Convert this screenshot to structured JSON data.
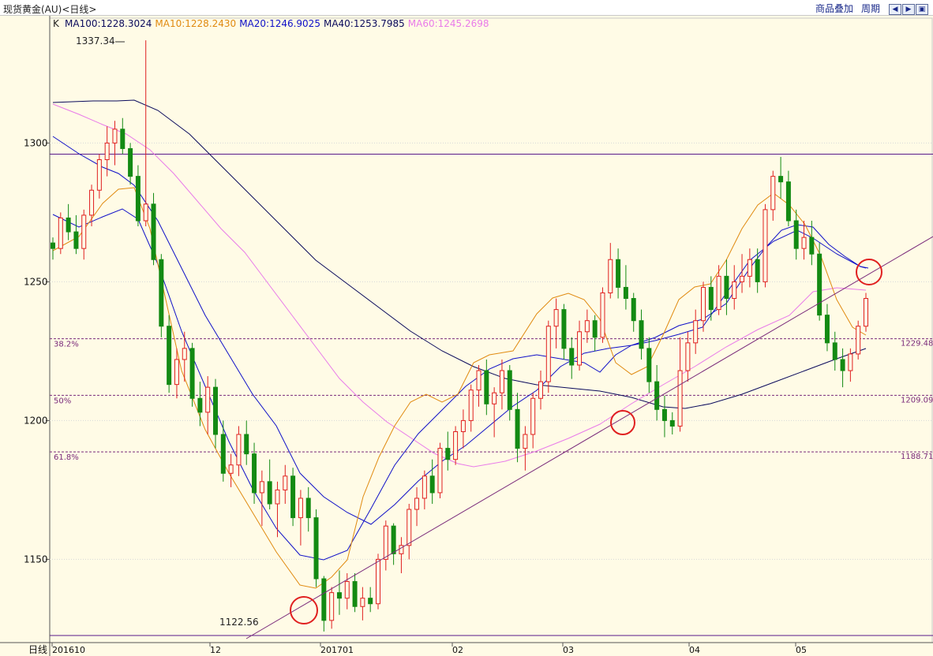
{
  "header": {
    "title": "现货黄金(AU)<日线>",
    "overlay_label": "商品叠加",
    "period_label": "周期",
    "nav_icons": [
      "arrow-left-icon",
      "arrow-right-icon",
      "restore-icon"
    ]
  },
  "legend": {
    "k_label": "K",
    "ma_items": [
      {
        "text": "MA100:1228.3024",
        "color": "#0a0a5c"
      },
      {
        "text": "MA10:1228.2430",
        "color": "#e08a10"
      },
      {
        "text": "MA20:1246.9025",
        "color": "#1010c8"
      },
      {
        "text": "MA40:1253.7985",
        "color": "#0a0a5c"
      },
      {
        "text": "MA60:1245.2698",
        "color": "#e97be9"
      }
    ]
  },
  "chart_data": {
    "type": "candlestick",
    "ylim": [
      1120,
      1345
    ],
    "ytick_labels": [
      "1150",
      "1200",
      "1250",
      "1300"
    ],
    "x_label": "日线",
    "xtick_labels": [
      "201610",
      "12",
      "201701",
      "02",
      "03",
      "04",
      "05"
    ],
    "high_label": "1337.34",
    "low_label": "1122.56",
    "fib_levels": [
      {
        "name": "38.2%",
        "value": 1229.48,
        "label": "1229.48"
      },
      {
        "name": "50%",
        "value": 1209.09,
        "label": "1209.09"
      },
      {
        "name": "61.8%",
        "value": 1188.71,
        "label": "1188.71"
      }
    ],
    "resistance": 1296,
    "support": 1122.56,
    "colors": {
      "up": "#e02020",
      "down": "#138a13",
      "fib": "#7a2a7a",
      "hline": "#5a1a8a",
      "circle": "#e02020"
    },
    "candles": [
      [
        1264,
        1266,
        1258,
        1262
      ],
      [
        1262,
        1275,
        1260,
        1273
      ],
      [
        1273,
        1278,
        1265,
        1268
      ],
      [
        1268,
        1274,
        1260,
        1262
      ],
      [
        1262,
        1276,
        1258,
        1274
      ],
      [
        1274,
        1285,
        1270,
        1283
      ],
      [
        1283,
        1296,
        1280,
        1294
      ],
      [
        1294,
        1306,
        1288,
        1300
      ],
      [
        1300,
        1308,
        1292,
        1305
      ],
      [
        1305,
        1309,
        1296,
        1298
      ],
      [
        1298,
        1300,
        1285,
        1288
      ],
      [
        1288,
        1292,
        1270,
        1272
      ],
      [
        1272,
        1337,
        1270,
        1278
      ],
      [
        1278,
        1282,
        1256,
        1258
      ],
      [
        1258,
        1260,
        1230,
        1234
      ],
      [
        1234,
        1238,
        1210,
        1213
      ],
      [
        1213,
        1226,
        1208,
        1222
      ],
      [
        1222,
        1232,
        1214,
        1226
      ],
      [
        1226,
        1228,
        1205,
        1208
      ],
      [
        1208,
        1214,
        1198,
        1203
      ],
      [
        1203,
        1216,
        1195,
        1212
      ],
      [
        1212,
        1215,
        1190,
        1195
      ],
      [
        1195,
        1200,
        1178,
        1181
      ],
      [
        1181,
        1188,
        1176,
        1184
      ],
      [
        1184,
        1198,
        1180,
        1195
      ],
      [
        1195,
        1200,
        1184,
        1188
      ],
      [
        1188,
        1192,
        1170,
        1174
      ],
      [
        1174,
        1182,
        1162,
        1178
      ],
      [
        1178,
        1186,
        1168,
        1170
      ],
      [
        1170,
        1178,
        1158,
        1175
      ],
      [
        1175,
        1184,
        1170,
        1180
      ],
      [
        1180,
        1183,
        1162,
        1165
      ],
      [
        1165,
        1175,
        1155,
        1172
      ],
      [
        1172,
        1176,
        1160,
        1165
      ],
      [
        1165,
        1168,
        1140,
        1143
      ],
      [
        1143,
        1144,
        1124,
        1128
      ],
      [
        1128,
        1140,
        1125,
        1138
      ],
      [
        1138,
        1146,
        1130,
        1136
      ],
      [
        1136,
        1145,
        1132,
        1142
      ],
      [
        1142,
        1145,
        1131,
        1133
      ],
      [
        1133,
        1140,
        1128,
        1136
      ],
      [
        1136,
        1140,
        1131,
        1134
      ],
      [
        1134,
        1152,
        1132,
        1150
      ],
      [
        1150,
        1164,
        1146,
        1162
      ],
      [
        1162,
        1163,
        1148,
        1152
      ],
      [
        1152,
        1158,
        1145,
        1155
      ],
      [
        1155,
        1170,
        1150,
        1168
      ],
      [
        1168,
        1176,
        1162,
        1172
      ],
      [
        1172,
        1182,
        1168,
        1180
      ],
      [
        1180,
        1186,
        1170,
        1174
      ],
      [
        1174,
        1192,
        1172,
        1190
      ],
      [
        1190,
        1196,
        1182,
        1186
      ],
      [
        1186,
        1198,
        1184,
        1196
      ],
      [
        1196,
        1204,
        1190,
        1200
      ],
      [
        1200,
        1213,
        1196,
        1211
      ],
      [
        1211,
        1220,
        1205,
        1218
      ],
      [
        1218,
        1222,
        1202,
        1206
      ],
      [
        1206,
        1212,
        1194,
        1210
      ],
      [
        1210,
        1222,
        1204,
        1218
      ],
      [
        1218,
        1220,
        1200,
        1204
      ],
      [
        1204,
        1210,
        1185,
        1190
      ],
      [
        1190,
        1198,
        1182,
        1195
      ],
      [
        1195,
        1210,
        1190,
        1208
      ],
      [
        1208,
        1218,
        1204,
        1214
      ],
      [
        1214,
        1236,
        1210,
        1234
      ],
      [
        1234,
        1244,
        1226,
        1240
      ],
      [
        1240,
        1242,
        1222,
        1226
      ],
      [
        1226,
        1230,
        1215,
        1220
      ],
      [
        1220,
        1236,
        1218,
        1232
      ],
      [
        1232,
        1240,
        1228,
        1236
      ],
      [
        1236,
        1238,
        1225,
        1230
      ],
      [
        1230,
        1248,
        1228,
        1246
      ],
      [
        1246,
        1264,
        1244,
        1258
      ],
      [
        1258,
        1262,
        1244,
        1248
      ],
      [
        1248,
        1256,
        1240,
        1244
      ],
      [
        1244,
        1246,
        1232,
        1236
      ],
      [
        1236,
        1240,
        1222,
        1226
      ],
      [
        1226,
        1230,
        1210,
        1214
      ],
      [
        1214,
        1220,
        1200,
        1204
      ],
      [
        1204,
        1209,
        1194,
        1200
      ],
      [
        1200,
        1203,
        1195,
        1198
      ],
      [
        1198,
        1230,
        1196,
        1218
      ],
      [
        1218,
        1232,
        1214,
        1228
      ],
      [
        1228,
        1240,
        1224,
        1236
      ],
      [
        1236,
        1250,
        1232,
        1248
      ],
      [
        1248,
        1252,
        1236,
        1240
      ],
      [
        1240,
        1256,
        1238,
        1252
      ],
      [
        1252,
        1258,
        1238,
        1244
      ],
      [
        1244,
        1256,
        1240,
        1250
      ],
      [
        1250,
        1260,
        1246,
        1252
      ],
      [
        1252,
        1262,
        1248,
        1258
      ],
      [
        1258,
        1262,
        1246,
        1250
      ],
      [
        1250,
        1278,
        1248,
        1276
      ],
      [
        1276,
        1290,
        1272,
        1288
      ],
      [
        1288,
        1295,
        1280,
        1286
      ],
      [
        1286,
        1290,
        1270,
        1272
      ],
      [
        1272,
        1276,
        1258,
        1262
      ],
      [
        1262,
        1272,
        1258,
        1266
      ],
      [
        1266,
        1272,
        1256,
        1260
      ],
      [
        1260,
        1264,
        1236,
        1238
      ],
      [
        1238,
        1242,
        1225,
        1228
      ],
      [
        1228,
        1232,
        1218,
        1222
      ],
      [
        1222,
        1226,
        1212,
        1218
      ],
      [
        1218,
        1226,
        1214,
        1224
      ],
      [
        1224,
        1236,
        1222,
        1234
      ],
      [
        1234,
        1246,
        1232,
        1244
      ]
    ]
  }
}
